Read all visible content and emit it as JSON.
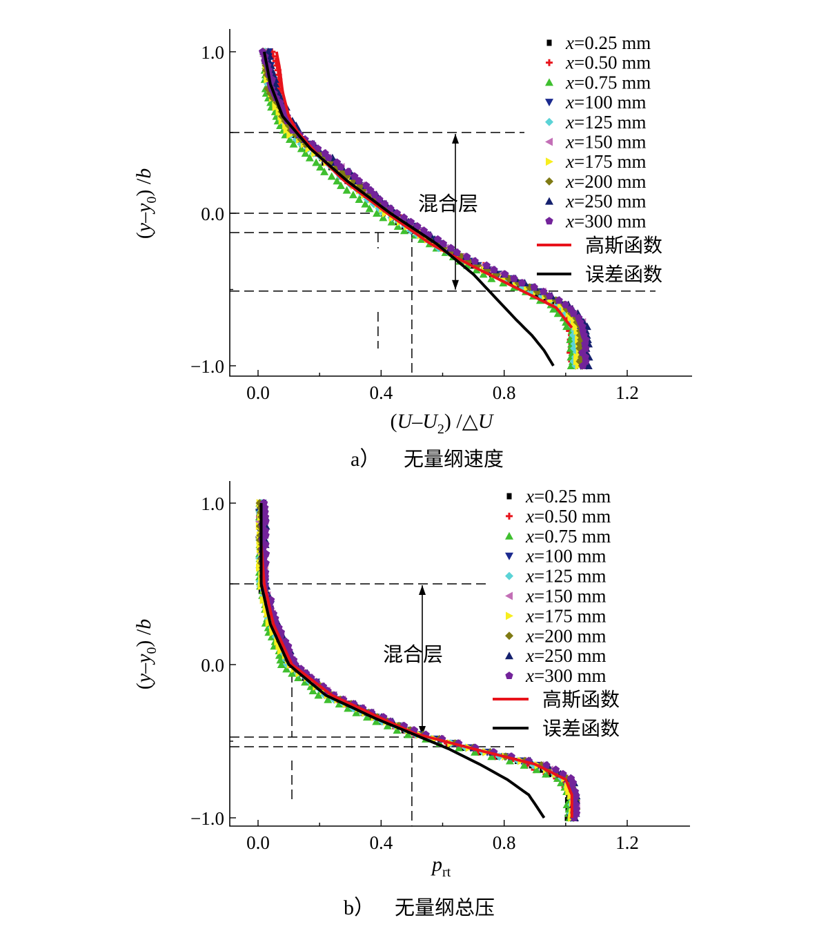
{
  "chart_data": [
    {
      "type": "scatter",
      "panel_caption_prefix": "a）",
      "panel_caption": "无量纲速度",
      "xlabel": "(U−U₂)/△U",
      "ylabel": "(y−y₀)/b",
      "xlim": [
        -0.13,
        1.4
      ],
      "ylim": [
        -1.05,
        1.15
      ],
      "xticks": [
        "0.0",
        "0.4",
        "0.8",
        "1.2"
      ],
      "xtick_values": [
        0.0,
        0.4,
        0.8,
        1.2
      ],
      "yticks": [
        "1.0",
        "0.0",
        "−1.0"
      ],
      "ytick_values": [
        1.0,
        0.0,
        -1.0
      ],
      "annotation": "混合层",
      "mixing_layer": [
        0.5,
        -0.51
      ],
      "legend_placement": "top-right",
      "series": [
        {
          "name": "x=0.25 mm",
          "marker": "square",
          "color": "#000000",
          "y": [
            1.0,
            0.75,
            0.5,
            0.25,
            0.0,
            -0.25,
            -0.4,
            -0.5,
            -0.6,
            -0.7,
            -0.8,
            -0.9,
            -1.0
          ],
          "x": [
            0.02,
            0.04,
            0.1,
            0.26,
            0.41,
            0.61,
            0.76,
            0.87,
            0.96,
            1.01,
            1.03,
            1.03,
            1.03
          ]
        },
        {
          "name": "x=0.50 mm",
          "marker": "plus",
          "color": "#e8131b",
          "y": [
            1.0,
            0.75,
            0.5,
            0.25,
            0.0,
            -0.25,
            -0.4,
            -0.5,
            -0.6,
            -0.7,
            -0.8,
            -0.9,
            -1.0
          ],
          "x": [
            0.05,
            0.07,
            0.11,
            0.27,
            0.44,
            0.63,
            0.79,
            0.89,
            0.97,
            1.01,
            1.02,
            1.02,
            1.02
          ]
        },
        {
          "name": "x=0.75 mm",
          "marker": "triangle-up",
          "color": "#3fbf2f",
          "y": [
            1.0,
            0.75,
            0.5,
            0.25,
            0.0,
            -0.25,
            -0.4,
            -0.5,
            -0.6,
            -0.7,
            -0.8,
            -0.9,
            -1.0
          ],
          "x": [
            0.02,
            0.03,
            0.08,
            0.22,
            0.38,
            0.6,
            0.73,
            0.85,
            0.95,
            1.0,
            1.02,
            1.02,
            1.02
          ]
        },
        {
          "name": "x=100 mm",
          "marker": "triangle-down",
          "color": "#1b2a8f",
          "y": [
            1.0,
            0.75,
            0.5,
            0.25,
            0.0,
            -0.25,
            -0.4,
            -0.5,
            -0.6,
            -0.7,
            -0.8,
            -0.9,
            -1.0
          ],
          "x": [
            0.03,
            0.05,
            0.11,
            0.28,
            0.43,
            0.62,
            0.78,
            0.9,
            0.99,
            1.04,
            1.05,
            1.05,
            1.05
          ]
        },
        {
          "name": "x=125 mm",
          "marker": "diamond",
          "color": "#5bd3d6",
          "y": [
            1.0,
            0.75,
            0.5,
            0.25,
            0.0,
            -0.25,
            -0.4,
            -0.5,
            -0.6,
            -0.7,
            -0.8,
            -0.9,
            -1.0
          ],
          "x": [
            0.02,
            0.04,
            0.1,
            0.26,
            0.41,
            0.61,
            0.77,
            0.88,
            0.97,
            1.02,
            1.03,
            1.03,
            1.03
          ]
        },
        {
          "name": "x=150 mm",
          "marker": "triangle-left",
          "color": "#c36fb6",
          "y": [
            1.0,
            0.75,
            0.5,
            0.25,
            0.0,
            -0.25,
            -0.4,
            -0.5,
            -0.6,
            -0.7,
            -0.8,
            -0.9,
            -1.0
          ],
          "x": [
            0.02,
            0.05,
            0.12,
            0.29,
            0.44,
            0.63,
            0.79,
            0.91,
            1.0,
            1.05,
            1.06,
            1.06,
            1.06
          ]
        },
        {
          "name": "x=175 mm",
          "marker": "triangle-right",
          "color": "#f7ee1e",
          "y": [
            1.0,
            0.75,
            0.5,
            0.25,
            0.0,
            -0.25,
            -0.4,
            -0.5,
            -0.6,
            -0.7,
            -0.8,
            -0.9,
            -1.0
          ],
          "x": [
            0.02,
            0.04,
            0.1,
            0.27,
            0.42,
            0.62,
            0.77,
            0.89,
            0.98,
            1.03,
            1.04,
            1.04,
            1.04
          ]
        },
        {
          "name": "x=200 mm",
          "marker": "diamond",
          "color": "#7f7a14",
          "y": [
            1.0,
            0.75,
            0.5,
            0.25,
            0.0,
            -0.25,
            -0.4,
            -0.5,
            -0.6,
            -0.7,
            -0.8,
            -0.9,
            -1.0
          ],
          "x": [
            0.02,
            0.04,
            0.11,
            0.28,
            0.43,
            0.62,
            0.78,
            0.9,
            0.99,
            1.04,
            1.05,
            1.05,
            1.05
          ]
        },
        {
          "name": "x=250 mm",
          "marker": "triangle-up",
          "color": "#14206e",
          "y": [
            1.0,
            0.75,
            0.5,
            0.25,
            0.0,
            -0.25,
            -0.4,
            -0.5,
            -0.6,
            -0.7,
            -0.8,
            -0.9,
            -1.0
          ],
          "x": [
            0.03,
            0.06,
            0.13,
            0.3,
            0.45,
            0.64,
            0.8,
            0.92,
            1.01,
            1.06,
            1.07,
            1.07,
            1.07
          ]
        },
        {
          "name": "x=300 mm",
          "marker": "pentagon",
          "color": "#73239a",
          "y": [
            1.0,
            0.75,
            0.5,
            0.25,
            0.0,
            -0.25,
            -0.4,
            -0.5,
            -0.6,
            -0.7,
            -0.8,
            -0.9,
            -1.0
          ],
          "x": [
            0.02,
            0.05,
            0.12,
            0.3,
            0.45,
            0.64,
            0.8,
            0.91,
            1.0,
            1.05,
            1.06,
            1.06,
            1.06
          ]
        },
        {
          "name": "高斯函数",
          "line": true,
          "color": "#e8131b",
          "y": [
            1.0,
            0.9,
            0.75,
            0.6,
            0.5,
            0.35,
            0.2,
            0.0,
            -0.2,
            -0.35,
            -0.45,
            -0.55,
            -0.62,
            -0.7,
            -0.75
          ],
          "x": [
            0.06,
            0.07,
            0.08,
            0.1,
            0.13,
            0.2,
            0.28,
            0.42,
            0.56,
            0.7,
            0.8,
            0.9,
            0.97,
            1.0,
            1.02
          ]
        },
        {
          "name": "误差函数",
          "line": true,
          "color": "#000000",
          "y": [
            1.0,
            0.8,
            0.6,
            0.4,
            0.2,
            0.0,
            -0.2,
            -0.4,
            -0.55,
            -0.7,
            -0.8,
            -0.9,
            -1.0
          ],
          "x": [
            0.02,
            0.04,
            0.08,
            0.17,
            0.29,
            0.43,
            0.58,
            0.7,
            0.77,
            0.84,
            0.89,
            0.93,
            0.96
          ]
        }
      ]
    },
    {
      "type": "scatter",
      "panel_caption_prefix": "b）",
      "panel_caption": "无量纲总压",
      "xlabel": "p_rt",
      "ylabel": "(y−y₀)/b",
      "xlim": [
        -0.13,
        1.4
      ],
      "ylim": [
        -1.05,
        1.15
      ],
      "xticks": [
        "0.0",
        "0.4",
        "0.8",
        "1.2"
      ],
      "xtick_values": [
        0.0,
        0.4,
        0.8,
        1.2
      ],
      "yticks": [
        "1.0",
        "0.0",
        "−1.0"
      ],
      "ytick_values": [
        1.0,
        0.0,
        -1.0
      ],
      "annotation": "混合层",
      "mixing_layer": [
        0.5,
        -0.44
      ],
      "legend_placement": "top-right",
      "series": [
        {
          "name": "x=0.25 mm",
          "marker": "square",
          "color": "#000000",
          "y": [
            1.0,
            0.75,
            0.5,
            0.25,
            0.0,
            -0.2,
            -0.35,
            -0.45,
            -0.55,
            -0.65,
            -0.75,
            -0.85,
            -1.0
          ],
          "x": [
            0.01,
            0.01,
            0.01,
            0.04,
            0.1,
            0.22,
            0.38,
            0.5,
            0.68,
            0.88,
            0.99,
            1.01,
            1.01
          ]
        },
        {
          "name": "x=0.50 mm",
          "marker": "plus",
          "color": "#e8131b",
          "y": [
            1.0,
            0.75,
            0.5,
            0.25,
            0.0,
            -0.2,
            -0.35,
            -0.45,
            -0.55,
            -0.65,
            -0.75,
            -0.85,
            -1.0
          ],
          "x": [
            0.01,
            0.01,
            0.02,
            0.04,
            0.1,
            0.23,
            0.38,
            0.5,
            0.67,
            0.86,
            0.98,
            1.02,
            1.02
          ]
        },
        {
          "name": "x=0.75 mm",
          "marker": "triangle-up",
          "color": "#3fbf2f",
          "y": [
            1.0,
            0.75,
            0.5,
            0.25,
            0.0,
            -0.2,
            -0.35,
            -0.45,
            -0.55,
            -0.65,
            -0.75,
            -0.85,
            -1.0
          ],
          "x": [
            0.01,
            0.01,
            0.01,
            0.03,
            0.08,
            0.2,
            0.36,
            0.48,
            0.66,
            0.86,
            0.98,
            1.01,
            1.01
          ]
        },
        {
          "name": "x=100 mm",
          "marker": "triangle-down",
          "color": "#1b2a8f",
          "y": [
            1.0,
            0.75,
            0.5,
            0.25,
            0.0,
            -0.2,
            -0.35,
            -0.45,
            -0.55,
            -0.65,
            -0.75,
            -0.85,
            -1.0
          ],
          "x": [
            0.01,
            0.01,
            0.02,
            0.05,
            0.11,
            0.24,
            0.39,
            0.51,
            0.7,
            0.9,
            1.0,
            1.02,
            1.02
          ]
        },
        {
          "name": "x=125 mm",
          "marker": "diamond",
          "color": "#5bd3d6",
          "y": [
            1.0,
            0.75,
            0.5,
            0.25,
            0.0,
            -0.2,
            -0.35,
            -0.45,
            -0.55,
            -0.65,
            -0.75,
            -0.85,
            -1.0
          ],
          "x": [
            0.01,
            0.01,
            0.01,
            0.04,
            0.1,
            0.22,
            0.38,
            0.5,
            0.69,
            0.89,
            1.0,
            1.02,
            1.02
          ]
        },
        {
          "name": "x=150 mm",
          "marker": "triangle-left",
          "color": "#c36fb6",
          "y": [
            1.0,
            0.75,
            0.5,
            0.25,
            0.0,
            -0.2,
            -0.35,
            -0.45,
            -0.55,
            -0.65,
            -0.75,
            -0.85,
            -1.0
          ],
          "x": [
            0.01,
            0.01,
            0.02,
            0.05,
            0.11,
            0.24,
            0.4,
            0.52,
            0.71,
            0.91,
            1.01,
            1.03,
            1.03
          ]
        },
        {
          "name": "x=175 mm",
          "marker": "triangle-right",
          "color": "#f7ee1e",
          "y": [
            1.0,
            0.75,
            0.5,
            0.25,
            0.0,
            -0.2,
            -0.35,
            -0.45,
            -0.55,
            -0.65,
            -0.75,
            -0.85,
            -1.0
          ],
          "x": [
            0.01,
            0.01,
            0.01,
            0.04,
            0.1,
            0.23,
            0.39,
            0.51,
            0.7,
            0.9,
            1.0,
            1.02,
            1.02
          ]
        },
        {
          "name": "x=200 mm",
          "marker": "diamond",
          "color": "#7f7a14",
          "y": [
            1.0,
            0.75,
            0.5,
            0.25,
            0.0,
            -0.2,
            -0.35,
            -0.45,
            -0.55,
            -0.65,
            -0.75,
            -0.85,
            -1.0
          ],
          "x": [
            0.01,
            0.01,
            0.02,
            0.05,
            0.11,
            0.24,
            0.4,
            0.52,
            0.71,
            0.91,
            1.01,
            1.03,
            1.03
          ]
        },
        {
          "name": "x=250 mm",
          "marker": "triangle-up",
          "color": "#14206e",
          "y": [
            1.0,
            0.75,
            0.5,
            0.25,
            0.0,
            -0.2,
            -0.35,
            -0.45,
            -0.55,
            -0.65,
            -0.75,
            -0.85,
            -1.0
          ],
          "x": [
            0.02,
            0.02,
            0.02,
            0.06,
            0.12,
            0.25,
            0.41,
            0.53,
            0.72,
            0.93,
            1.02,
            1.03,
            1.03
          ]
        },
        {
          "name": "x=300 mm",
          "marker": "pentagon",
          "color": "#73239a",
          "y": [
            1.0,
            0.75,
            0.5,
            0.25,
            0.0,
            -0.2,
            -0.35,
            -0.45,
            -0.55,
            -0.65,
            -0.75,
            -0.85,
            -1.0
          ],
          "x": [
            0.02,
            0.02,
            0.02,
            0.06,
            0.12,
            0.25,
            0.41,
            0.53,
            0.72,
            0.93,
            1.02,
            1.03,
            1.03
          ]
        },
        {
          "name": "高斯函数",
          "line": true,
          "color": "#e8131b",
          "y": [
            1.0,
            0.75,
            0.5,
            0.25,
            0.0,
            -0.2,
            -0.35,
            -0.45,
            -0.55,
            -0.65,
            -0.75,
            -0.85,
            -1.0
          ],
          "x": [
            0.01,
            0.01,
            0.02,
            0.05,
            0.11,
            0.24,
            0.4,
            0.51,
            0.7,
            0.9,
            1.0,
            1.02,
            1.02
          ]
        },
        {
          "name": "误差函数",
          "line": true,
          "color": "#000000",
          "y": [
            1.0,
            0.75,
            0.5,
            0.25,
            0.0,
            -0.2,
            -0.35,
            -0.45,
            -0.55,
            -0.65,
            -0.75,
            -0.85,
            -1.0
          ],
          "x": [
            0.01,
            0.01,
            0.01,
            0.04,
            0.1,
            0.22,
            0.38,
            0.5,
            0.62,
            0.72,
            0.81,
            0.88,
            0.93
          ]
        }
      ]
    }
  ]
}
